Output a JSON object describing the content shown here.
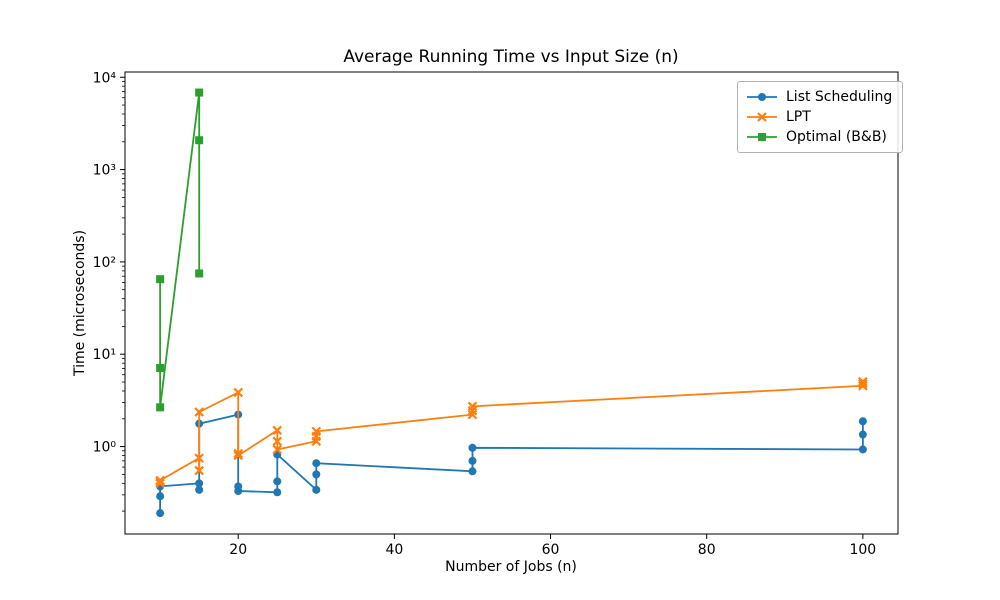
{
  "figure": {
    "background": "#ffffff",
    "frame_color": "#000000"
  },
  "chart_data": {
    "type": "line",
    "title": "Average Running Time vs Input Size (n)",
    "xlabel": "Number of Jobs (n)",
    "ylabel": "Time (microseconds)",
    "x_scale": "linear",
    "y_scale": "log",
    "xlim": [
      5.5,
      104.5
    ],
    "ylim": [
      0.113,
      11400
    ],
    "grid": false,
    "legend_position": "upper right",
    "x_ticks": [
      20,
      40,
      60,
      80,
      100
    ],
    "y_ticks": [
      {
        "value": 1,
        "label": "10⁰"
      },
      {
        "value": 10,
        "label": "10¹"
      },
      {
        "value": 100,
        "label": "10²"
      },
      {
        "value": 1000,
        "label": "10³"
      },
      {
        "value": 10000,
        "label": "10⁴"
      }
    ],
    "series": [
      {
        "id": "list-scheduling",
        "name": "List Scheduling",
        "color": "#1f77b4",
        "marker": "circle",
        "points": [
          [
            10,
            0.29
          ],
          [
            10,
            0.19
          ],
          [
            10,
            0.37
          ],
          [
            15,
            0.4
          ],
          [
            15,
            0.34
          ],
          [
            15,
            1.77
          ],
          [
            20,
            2.22
          ],
          [
            20,
            0.37
          ],
          [
            20,
            0.33
          ],
          [
            25,
            0.32
          ],
          [
            25,
            0.42
          ],
          [
            25,
            0.82
          ],
          [
            30,
            0.34
          ],
          [
            30,
            0.5
          ],
          [
            30,
            0.66
          ],
          [
            50,
            0.54
          ],
          [
            50,
            0.7
          ],
          [
            50,
            0.97
          ],
          [
            100,
            0.93
          ],
          [
            100,
            1.35
          ],
          [
            100,
            1.88
          ]
        ]
      },
      {
        "id": "lpt",
        "name": "LPT",
        "color": "#ff7f0e",
        "marker": "x",
        "points": [
          [
            10,
            0.4
          ],
          [
            10,
            0.42
          ],
          [
            10,
            0.43
          ],
          [
            15,
            0.75
          ],
          [
            15,
            0.55
          ],
          [
            15,
            2.37
          ],
          [
            20,
            3.86
          ],
          [
            20,
            0.84
          ],
          [
            20,
            0.8
          ],
          [
            25,
            1.5
          ],
          [
            25,
            1.14
          ],
          [
            25,
            0.93
          ],
          [
            30,
            1.14
          ],
          [
            30,
            1.29
          ],
          [
            30,
            1.46
          ],
          [
            50,
            2.22
          ],
          [
            50,
            2.45
          ],
          [
            50,
            2.73
          ],
          [
            100,
            4.55
          ],
          [
            100,
            4.8
          ],
          [
            100,
            5.05
          ]
        ]
      },
      {
        "id": "optimal-bb",
        "name": "Optimal (B&B)",
        "color": "#2ca02c",
        "marker": "square",
        "points": [
          [
            10,
            65
          ],
          [
            10,
            7.1
          ],
          [
            10,
            2.66
          ],
          [
            15,
            6830
          ],
          [
            15,
            2080
          ],
          [
            15,
            75
          ]
        ]
      }
    ]
  }
}
